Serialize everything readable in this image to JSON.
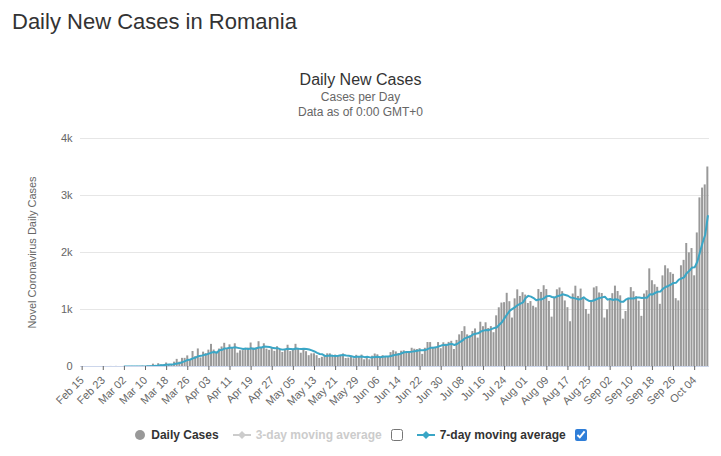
{
  "chart_data": {
    "type": "bar",
    "page_title": "Daily New Cases in Romania",
    "title": "Daily New Cases",
    "subtitle": [
      "Cases per Day",
      "Data as of 0:00 GMT+0"
    ],
    "y_label": "Novel Coronavirus Daily Cases",
    "categories": [
      "Feb 15",
      null,
      null,
      null,
      null,
      null,
      null,
      null,
      "Feb 23",
      null,
      null,
      null,
      null,
      null,
      null,
      null,
      "Mar 02",
      null,
      null,
      null,
      null,
      null,
      null,
      null,
      "Mar 10",
      null,
      null,
      null,
      null,
      null,
      null,
      null,
      "Mar 18",
      null,
      null,
      null,
      null,
      null,
      null,
      null,
      "Mar 26",
      null,
      null,
      null,
      null,
      null,
      null,
      null,
      "Apr 03",
      null,
      null,
      null,
      null,
      null,
      null,
      null,
      "Apr 11",
      null,
      null,
      null,
      null,
      null,
      null,
      null,
      "Apr 19",
      null,
      null,
      null,
      null,
      null,
      null,
      null,
      "Apr 27",
      null,
      null,
      null,
      null,
      null,
      null,
      null,
      "May 05",
      null,
      null,
      null,
      null,
      null,
      null,
      null,
      "May 13",
      null,
      null,
      null,
      null,
      null,
      null,
      null,
      "May 21",
      null,
      null,
      null,
      null,
      null,
      null,
      null,
      "May 29",
      null,
      null,
      null,
      null,
      null,
      null,
      null,
      "Jun 06",
      null,
      null,
      null,
      null,
      null,
      null,
      null,
      "Jun 14",
      null,
      null,
      null,
      null,
      null,
      null,
      null,
      "Jun 22",
      null,
      null,
      null,
      null,
      null,
      null,
      null,
      "Jun 30",
      null,
      null,
      null,
      null,
      null,
      null,
      null,
      "Jul 08",
      null,
      null,
      null,
      null,
      null,
      null,
      null,
      "Jul 16",
      null,
      null,
      null,
      null,
      null,
      null,
      null,
      "Jul 24",
      null,
      null,
      null,
      null,
      null,
      null,
      null,
      "Aug 01",
      null,
      null,
      null,
      null,
      null,
      null,
      null,
      "Aug 09",
      null,
      null,
      null,
      null,
      null,
      null,
      null,
      "Aug 17",
      null,
      null,
      null,
      null,
      null,
      null,
      null,
      "Aug 25",
      null,
      null,
      null,
      null,
      null,
      null,
      null,
      "Sep 02",
      null,
      null,
      null,
      null,
      null,
      null,
      null,
      "Sep 10",
      null,
      null,
      null,
      null,
      null,
      null,
      null,
      "Sep 18",
      null,
      null,
      null,
      null,
      null,
      null,
      null,
      "Sep 26",
      null,
      null,
      null,
      null,
      null,
      null,
      null,
      "Oct 04",
      null,
      null,
      null,
      null,
      null
    ],
    "series": [
      {
        "name": "Daily Cases",
        "type": "bar",
        "color": "#999999",
        "values": [
          0,
          0,
          0,
          0,
          0,
          0,
          0,
          0,
          0,
          0,
          0,
          1,
          0,
          2,
          0,
          0,
          0,
          0,
          1,
          2,
          1,
          2,
          2,
          6,
          0,
          10,
          11,
          41,
          5,
          49,
          28,
          29,
          61,
          31,
          30,
          76,
          125,
          76,
          143,
          143,
          186,
          123,
          263,
          172,
          308,
          151,
          252,
          225,
          287,
          388,
          289,
          252,
          306,
          343,
          407,
          307,
          380,
          322,
          399,
          234,
          276,
          279,
          307,
          322,
          412,
          322,
          320,
          435,
          334,
          399,
          304,
          283,
          321,
          266,
          347,
          305,
          246,
          301,
          373,
          262,
          291,
          389,
          305,
          233,
          315,
          260,
          190,
          222,
          223,
          190,
          140,
          161,
          186,
          222,
          222,
          180,
          200,
          180,
          181,
          220,
          140,
          147,
          177,
          136,
          196,
          175,
          200,
          117,
          160,
          118,
          181,
          219,
          205,
          140,
          190,
          170,
          157,
          244,
          276,
          256,
          227,
          268,
          275,
          232,
          250,
          320,
          303,
          297,
          313,
          213,
          320,
          421,
          420,
          335,
          326,
          420,
          312,
          416,
          390,
          423,
          442,
          298,
          458,
          555,
          614,
          698,
          555,
          535,
          614,
          659,
          498,
          777,
          698,
          767,
          667,
          700,
          593,
          889,
          1030,
          1113,
          1120,
          1284,
          1137,
          850,
          1187,
          1345,
          1229,
          1295,
          1253,
          1105,
          1139,
          1057,
          1030,
          1350,
          1300,
          1417,
          1350,
          1142,
          866,
          1215,
          1346,
          1378,
          1313,
          1150,
          1032,
          785,
          1272,
          1409,
          1229,
          1358,
          1188,
          1000,
          917,
          1143,
          1378,
          1400,
          1290,
          1280,
          850,
          995,
          1180,
          1278,
          1410,
          1316,
          1240,
          830,
          965,
          1198,
          1384,
          1312,
          1225,
          1145,
          880,
          1271,
          1329,
          1713,
          1505,
          1434,
          1389,
          1091,
          1590,
          1767,
          1713,
          1646,
          1617,
          1190,
          1151,
          1767,
          1862,
          2158,
          1994,
          2069,
          1591,
          2343,
          2958,
          3130,
          3186,
          3500
        ]
      },
      {
        "name": "7-day moving average",
        "type": "line",
        "color": "#3aa6c6",
        "checked": true,
        "values": [
          null,
          null,
          null,
          null,
          null,
          null,
          null,
          null,
          null,
          null,
          null,
          null,
          null,
          null,
          null,
          null,
          0,
          0,
          0,
          1,
          1,
          1,
          1,
          2,
          2,
          3,
          4,
          10,
          11,
          17,
          21,
          25,
          32,
          35,
          33,
          43,
          54,
          61,
          77,
          94,
          116,
          123,
          143,
          157,
          181,
          187,
          200,
          209,
          227,
          244,
          255,
          240,
          286,
          292,
          317,
          320,
          327,
          331,
          337,
          327,
          318,
          306,
          315,
          305,
          319,
          307,
          320,
          333,
          333,
          350,
          346,
          342,
          329,
          319,
          322,
          304,
          296,
          301,
          310,
          309,
          302,
          316,
          310,
          308,
          310,
          307,
          297,
          283,
          264,
          240,
          220,
          213,
          186,
          187,
          192,
          187,
          186,
          190,
          196,
          201,
          192,
          187,
          178,
          168,
          171,
          170,
          176,
          164,
          170,
          160,
          162,
          168,
          170,
          163,
          173,
          174,
          174,
          184,
          198,
          208,
          213,
          232,
          250,
          255,
          255,
          261,
          269,
          278,
          284,
          283,
          288,
          310,
          327,
          331,
          336,
          351,
          367,
          379,
          375,
          390,
          396,
          378,
          395,
          426,
          454,
          494,
          512,
          526,
          561,
          573,
          582,
          613,
          629,
          640,
          638,
          655,
          674,
          685,
          731,
          777,
          848,
          917,
          979,
          1011,
          1042,
          1078,
          1102,
          1125,
          1201,
          1239,
          1226,
          1201,
          1162,
          1176,
          1176,
          1199,
          1234,
          1239,
          1220,
          1210,
          1234,
          1244,
          1266,
          1254,
          1241,
          1211,
          1204,
          1191,
          1177,
          1185,
          1214,
          1176,
          1150,
          1148,
          1162,
          1184,
          1201,
          1213,
          1223,
          1173,
          1185,
          1168,
          1181,
          1171,
          1136,
          1135,
          1177,
          1194,
          1192,
          1194,
          1210,
          1212,
          1202,
          1207,
          1208,
          1267,
          1262,
          1290,
          1311,
          1314,
          1364,
          1395,
          1413,
          1436,
          1466,
          1470,
          1525,
          1544,
          1564,
          1638,
          1678,
          1736,
          1739,
          1838,
          2003,
          2170,
          2312,
          2640
        ]
      }
    ],
    "inactive_series": [
      {
        "name": "3-day moving average",
        "color": "#cccccc",
        "checked": false
      }
    ],
    "ylim": [
      0,
      4000
    ],
    "yticks": [
      {
        "value": 0,
        "label": "0"
      },
      {
        "value": 1000,
        "label": "1k"
      },
      {
        "value": 2000,
        "label": "2k"
      },
      {
        "value": 3000,
        "label": "3k"
      },
      {
        "value": 4000,
        "label": "4k"
      }
    ],
    "grid": true
  }
}
